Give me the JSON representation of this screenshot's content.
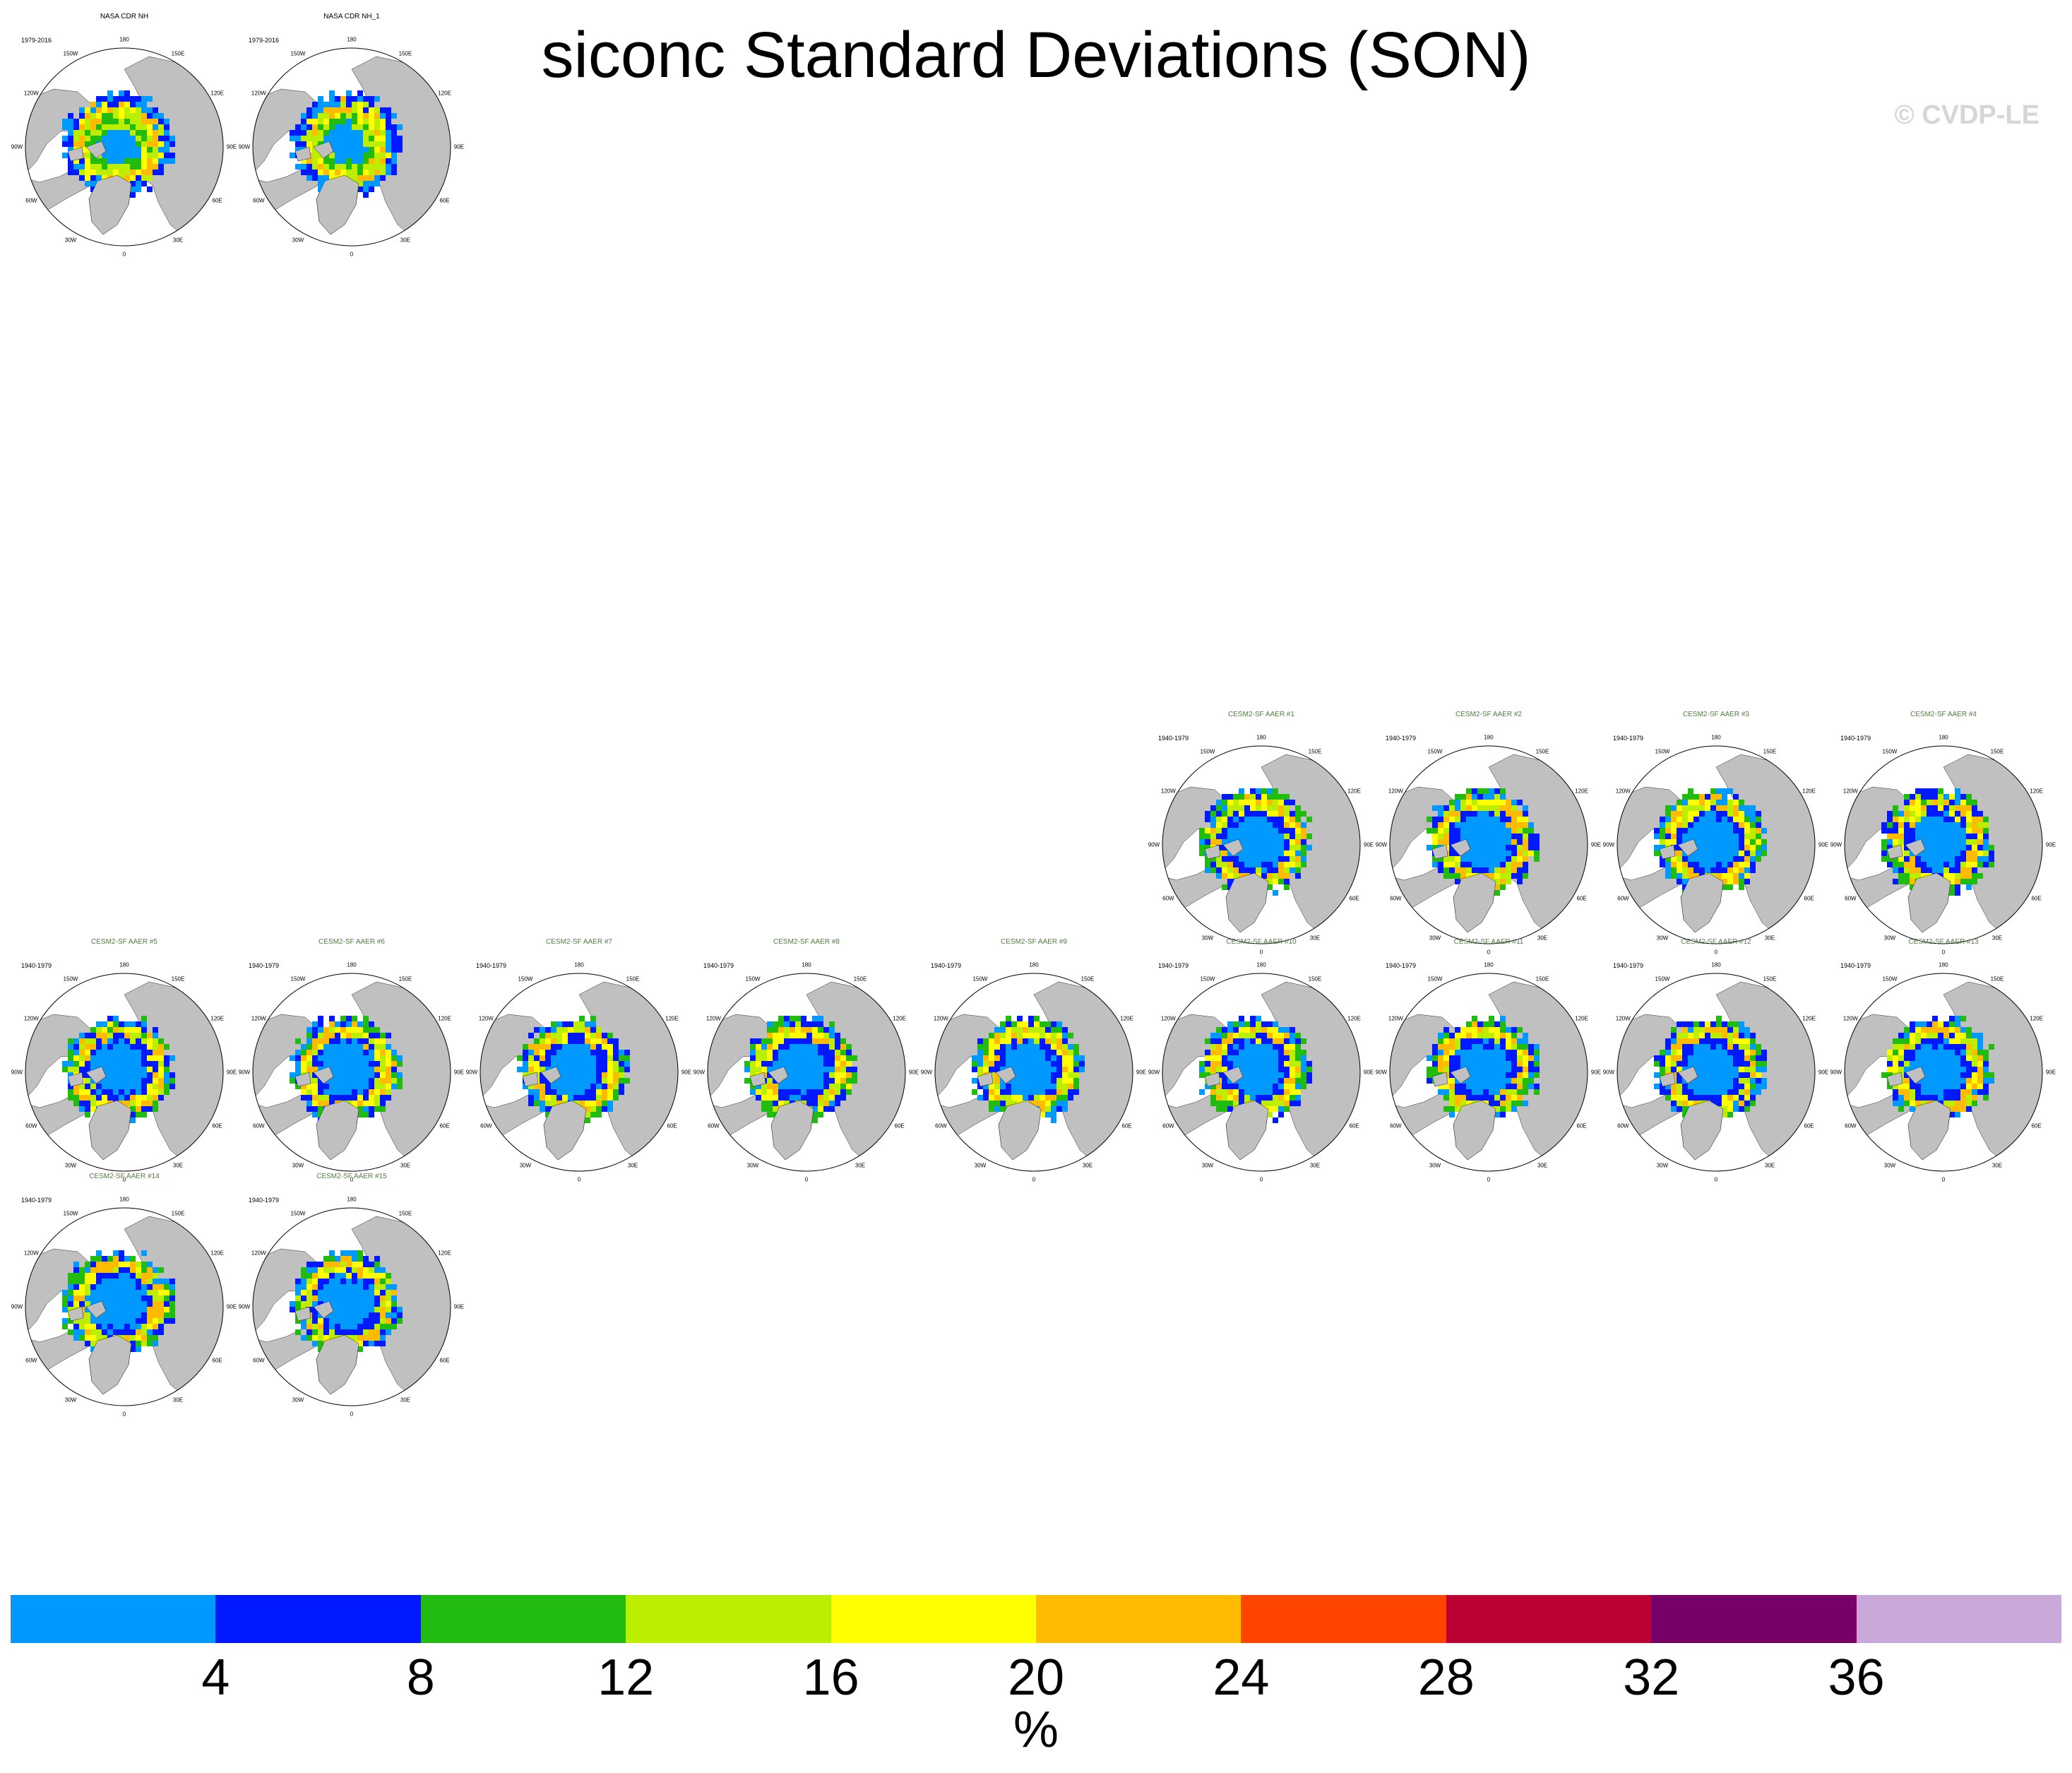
{
  "title": "siconc Standard Deviations (SON)",
  "watermark": "© CVDP-LE",
  "colors": {
    "background": "#ffffff",
    "land": "#c0c0c0",
    "obs_title": "#000000",
    "model_title": "#4f7f3f"
  },
  "chart_data": {
    "type": "heatmap",
    "projection": "north-polar-stereographic",
    "units": "%",
    "colorbar": {
      "ticks": [
        "4",
        "8",
        "12",
        "16",
        "20",
        "24",
        "28",
        "32",
        "36"
      ],
      "colors": [
        "#0099ff",
        "#0019ff",
        "#22bb0f",
        "#bbee00",
        "#ffff00",
        "#ffbb00",
        "#ff4400",
        "#bb0033",
        "#770066",
        "#c8a8d8"
      ]
    },
    "longitude_labels": [
      "180",
      "150E",
      "120E",
      "90E",
      "60E",
      "30E",
      "0",
      "30W",
      "60W",
      "90W",
      "120W",
      "150W"
    ],
    "panels": [
      {
        "title": "NASA CDR NH",
        "period": "1979-2016",
        "kind": "obs",
        "row": 0,
        "col": 0
      },
      {
        "title": "NASA CDR NH_1",
        "period": "1979-2016",
        "kind": "obs",
        "row": 0,
        "col": 1
      },
      {
        "title": "CESM2-SF AAER #1",
        "period": "1940-1979",
        "kind": "model",
        "row": 1,
        "col": 5
      },
      {
        "title": "CESM2-SF AAER #2",
        "period": "1940-1979",
        "kind": "model",
        "row": 1,
        "col": 6
      },
      {
        "title": "CESM2-SF AAER #3",
        "period": "1940-1979",
        "kind": "model",
        "row": 1,
        "col": 7
      },
      {
        "title": "CESM2-SF AAER #4",
        "period": "1940-1979",
        "kind": "model",
        "row": 1,
        "col": 8
      },
      {
        "title": "CESM2-SF AAER #5",
        "period": "1940-1979",
        "kind": "model",
        "row": 2,
        "col": 0
      },
      {
        "title": "CESM2-SF AAER #6",
        "period": "1940-1979",
        "kind": "model",
        "row": 2,
        "col": 1
      },
      {
        "title": "CESM2-SF AAER #7",
        "period": "1940-1979",
        "kind": "model",
        "row": 2,
        "col": 2
      },
      {
        "title": "CESM2-SF AAER #8",
        "period": "1940-1979",
        "kind": "model",
        "row": 2,
        "col": 3
      },
      {
        "title": "CESM2-SF AAER #9",
        "period": "1940-1979",
        "kind": "model",
        "row": 2,
        "col": 4
      },
      {
        "title": "CESM2-SF AAER #10",
        "period": "1940-1979",
        "kind": "model",
        "row": 2,
        "col": 5
      },
      {
        "title": "CESM2-SF AAER #11",
        "period": "1940-1979",
        "kind": "model",
        "row": 2,
        "col": 6
      },
      {
        "title": "CESM2-SF AAER #12",
        "period": "1940-1979",
        "kind": "model",
        "row": 2,
        "col": 7
      },
      {
        "title": "CESM2-SF AAER #13",
        "period": "1940-1979",
        "kind": "model",
        "row": 2,
        "col": 8
      },
      {
        "title": "CESM2-SF AAER #14",
        "period": "1940-1979",
        "kind": "model",
        "row": 3,
        "col": 0
      },
      {
        "title": "CESM2-SF AAER #15",
        "period": "1940-1979",
        "kind": "model",
        "row": 3,
        "col": 1
      }
    ]
  }
}
